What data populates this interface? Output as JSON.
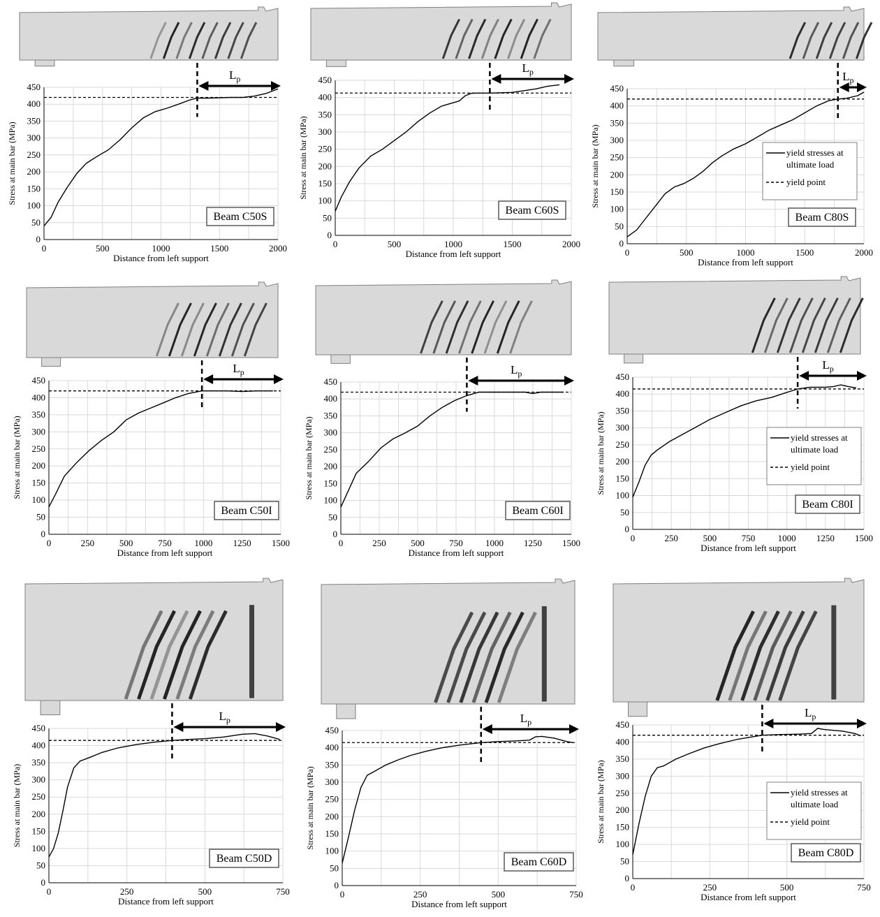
{
  "figure": {
    "background": "#ffffff",
    "beam_fill": "#d9d9d9",
    "beam_stroke": "#7f7f7f",
    "crack_color": "#1a1a1a",
    "line_color": "#000000",
    "grid_color": "#d9d9d9",
    "box_fill": "#ffffff",
    "box_stroke": "#595959"
  },
  "chart_data": [
    {
      "type": "line",
      "id": "C50S",
      "beam_label": "Beam C50S",
      "xlabel": "Distance  from left support",
      "ylabel": "Stress at main bar (MPa)",
      "xlim": [
        0,
        2000
      ],
      "ylim": [
        0,
        450
      ],
      "xticks": [
        0,
        500,
        1000,
        1500,
        2000
      ],
      "yticks": [
        0,
        50,
        100,
        150,
        200,
        250,
        300,
        350,
        400,
        450
      ],
      "grid": true,
      "yield_point": 420,
      "lp_start": 1310,
      "lp_label": "Lp",
      "legend": null,
      "series": [
        {
          "x": [
            0,
            60,
            120,
            200,
            280,
            360,
            450,
            550,
            650,
            750,
            850,
            950,
            1050,
            1150,
            1250,
            1310,
            1400,
            1500,
            1600,
            1700,
            1800,
            1900,
            2000
          ],
          "y": [
            40,
            65,
            110,
            155,
            195,
            225,
            245,
            265,
            295,
            330,
            360,
            378,
            388,
            400,
            413,
            418,
            418,
            419,
            420,
            420,
            424,
            432,
            445
          ]
        }
      ]
    },
    {
      "type": "line",
      "id": "C60S",
      "beam_label": "Beam C60S",
      "xlabel": "Distance from left support",
      "ylabel": "Stress at main bar (MPa)",
      "xlim": [
        0,
        2000
      ],
      "ylim": [
        0,
        450
      ],
      "xticks": [
        0,
        500,
        1000,
        1500,
        2000
      ],
      "yticks": [
        0,
        50,
        100,
        150,
        200,
        250,
        300,
        350,
        400,
        450
      ],
      "grid": true,
      "yield_point": 413,
      "lp_start": 1310,
      "lp_label": "Lp",
      "legend": null,
      "series": [
        {
          "x": [
            0,
            50,
            120,
            200,
            300,
            400,
            500,
            600,
            700,
            800,
            900,
            1000,
            1050,
            1100,
            1150,
            1200,
            1310,
            1400,
            1500,
            1600,
            1700,
            1800,
            1900
          ],
          "y": [
            70,
            110,
            155,
            195,
            230,
            250,
            275,
            300,
            330,
            355,
            375,
            385,
            390,
            405,
            412,
            413,
            413,
            414,
            415,
            420,
            425,
            433,
            437
          ]
        }
      ]
    },
    {
      "type": "line",
      "id": "C80S",
      "beam_label": "Beam C80S",
      "xlabel": "Distance from left support",
      "ylabel": "Stress at main bar (MPa)",
      "xlim": [
        0,
        2000
      ],
      "ylim": [
        0,
        450
      ],
      "xticks": [
        0,
        500,
        1000,
        1500,
        2000
      ],
      "yticks": [
        0,
        50,
        100,
        150,
        200,
        250,
        300,
        350,
        400,
        450
      ],
      "grid": true,
      "yield_point": 420,
      "lp_start": 1780,
      "lp_label": "Lp",
      "legend": {
        "solid": "yield stresses at ultimate load",
        "dashed": "yield point"
      },
      "series": [
        {
          "x": [
            0,
            80,
            160,
            240,
            320,
            400,
            480,
            560,
            640,
            720,
            800,
            900,
            1000,
            1100,
            1200,
            1300,
            1400,
            1500,
            1600,
            1700,
            1780,
            1850,
            1950,
            2000
          ],
          "y": [
            20,
            40,
            75,
            110,
            145,
            165,
            175,
            190,
            210,
            235,
            255,
            275,
            290,
            310,
            330,
            345,
            360,
            380,
            400,
            415,
            420,
            422,
            430,
            440
          ]
        }
      ]
    },
    {
      "type": "line",
      "id": "C50I",
      "beam_label": "Beam C50I",
      "xlabel": "Distance  from left support",
      "ylabel": "Stress at main bar (MPa)",
      "xlim": [
        0,
        1500
      ],
      "ylim": [
        0,
        450
      ],
      "xticks": [
        0,
        250,
        500,
        750,
        1000,
        1250,
        1500
      ],
      "yticks": [
        0,
        50,
        100,
        150,
        200,
        250,
        300,
        350,
        400,
        450
      ],
      "grid": true,
      "yield_point": 420,
      "lp_start": 990,
      "lp_label": "Lp",
      "legend": null,
      "series": [
        {
          "x": [
            0,
            40,
            100,
            180,
            260,
            340,
            420,
            500,
            580,
            660,
            740,
            820,
            900,
            990,
            1050,
            1150,
            1250,
            1350,
            1450
          ],
          "y": [
            80,
            115,
            170,
            210,
            245,
            275,
            300,
            335,
            355,
            370,
            385,
            400,
            412,
            420,
            420,
            420,
            418,
            420,
            420
          ]
        }
      ]
    },
    {
      "type": "line",
      "id": "C60I",
      "beam_label": "Beam C60I",
      "xlabel": "Distance from left support",
      "ylabel": "Stress at main bar (MPa)",
      "xlim": [
        0,
        1500
      ],
      "ylim": [
        0,
        450
      ],
      "xticks": [
        0,
        250,
        500,
        750,
        1000,
        1250,
        1500
      ],
      "yticks": [
        0,
        50,
        100,
        150,
        200,
        250,
        300,
        350,
        400,
        450
      ],
      "grid": true,
      "yield_point": 420,
      "lp_start": 820,
      "lp_label": "Lp",
      "legend": null,
      "series": [
        {
          "x": [
            0,
            40,
            100,
            180,
            260,
            340,
            420,
            500,
            580,
            660,
            740,
            820,
            900,
            1000,
            1100,
            1200,
            1250,
            1300,
            1400,
            1450
          ],
          "y": [
            80,
            120,
            180,
            215,
            255,
            282,
            300,
            320,
            350,
            375,
            395,
            410,
            420,
            420,
            420,
            420,
            416,
            420,
            420,
            420
          ]
        }
      ]
    },
    {
      "type": "line",
      "id": "C80I",
      "beam_label": "Beam C80I",
      "xlabel": "Distance from left support",
      "ylabel": "Stress at main bar (MPa)",
      "xlim": [
        0,
        1500
      ],
      "ylim": [
        0,
        450
      ],
      "xticks": [
        0,
        250,
        500,
        750,
        1000,
        1250,
        1500
      ],
      "yticks": [
        0,
        50,
        100,
        150,
        200,
        250,
        300,
        350,
        400,
        450
      ],
      "grid": true,
      "yield_point": 415,
      "lp_start": 1070,
      "lp_label": "Lp",
      "legend": {
        "solid": "yield stresses at ultimate load",
        "dashed": "yield point"
      },
      "series": [
        {
          "x": [
            0,
            40,
            80,
            120,
            160,
            240,
            320,
            400,
            500,
            600,
            700,
            800,
            900,
            1000,
            1070,
            1150,
            1250,
            1300,
            1350,
            1400,
            1450
          ],
          "y": [
            95,
            140,
            190,
            220,
            235,
            260,
            280,
            300,
            325,
            345,
            365,
            380,
            390,
            405,
            415,
            420,
            420,
            422,
            427,
            422,
            418
          ]
        }
      ]
    },
    {
      "type": "line",
      "id": "C50D",
      "beam_label": "Beam C50D",
      "xlabel": "Distance from left support",
      "ylabel": "Stress at main bar (MPa)",
      "xlim": [
        0,
        750
      ],
      "ylim": [
        0,
        450
      ],
      "xticks": [
        0,
        250,
        500,
        750
      ],
      "yticks": [
        0,
        50,
        100,
        150,
        200,
        250,
        300,
        350,
        400,
        450
      ],
      "grid": true,
      "yield_point": 415,
      "lp_start": 395,
      "lp_label": "Lp",
      "legend": null,
      "series": [
        {
          "x": [
            0,
            15,
            30,
            45,
            60,
            80,
            100,
            130,
            170,
            220,
            280,
            340,
            395,
            450,
            500,
            560,
            620,
            660,
            700,
            740
          ],
          "y": [
            75,
            100,
            145,
            210,
            280,
            335,
            355,
            365,
            380,
            393,
            403,
            410,
            415,
            418,
            420,
            425,
            433,
            435,
            428,
            418
          ]
        }
      ]
    },
    {
      "type": "line",
      "id": "C60D",
      "beam_label": "Beam C60D",
      "xlabel": "Distance  from left support",
      "ylabel": "Stress at main bar (MPa)",
      "xlim": [
        0,
        750
      ],
      "ylim": [
        0,
        450
      ],
      "xticks": [
        0,
        250,
        500,
        750
      ],
      "yticks": [
        0,
        50,
        100,
        150,
        200,
        250,
        300,
        350,
        400,
        450
      ],
      "grid": true,
      "yield_point": 415,
      "lp_start": 445,
      "lp_label": "Lp",
      "legend": null,
      "series": [
        {
          "x": [
            0,
            20,
            40,
            60,
            80,
            100,
            140,
            180,
            220,
            270,
            320,
            380,
            445,
            500,
            560,
            600,
            620,
            640,
            680,
            720,
            740
          ],
          "y": [
            65,
            140,
            220,
            285,
            320,
            330,
            350,
            365,
            378,
            390,
            400,
            408,
            415,
            418,
            420,
            422,
            432,
            433,
            428,
            418,
            415
          ]
        }
      ]
    },
    {
      "type": "line",
      "id": "C80D",
      "beam_label": "Beam C80D",
      "xlabel": "Distance from left support",
      "ylabel": "Stress at main bar (MPa)",
      "xlim": [
        0,
        750
      ],
      "ylim": [
        0,
        450
      ],
      "xticks": [
        0,
        250,
        500,
        750
      ],
      "yticks": [
        0,
        50,
        100,
        150,
        200,
        250,
        300,
        350,
        400,
        450
      ],
      "grid": true,
      "yield_point": 420,
      "lp_start": 420,
      "lp_label": "Lp",
      "legend": {
        "solid": "yield stresses at ultimate load",
        "dashed": "yield point"
      },
      "series": [
        {
          "x": [
            0,
            20,
            40,
            60,
            80,
            100,
            140,
            180,
            230,
            280,
            340,
            420,
            480,
            540,
            580,
            600,
            620,
            640,
            680,
            720,
            740
          ],
          "y": [
            70,
            160,
            240,
            300,
            325,
            330,
            350,
            365,
            382,
            395,
            408,
            420,
            422,
            423,
            425,
            440,
            437,
            435,
            432,
            425,
            418
          ]
        }
      ]
    }
  ]
}
